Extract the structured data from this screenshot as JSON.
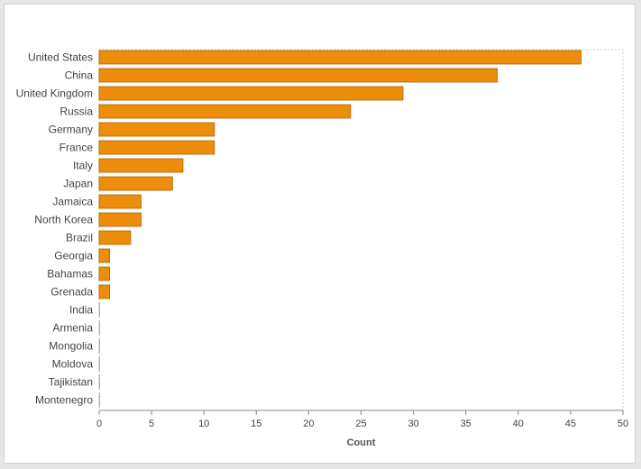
{
  "chart_data": {
    "type": "bar",
    "orientation": "horizontal",
    "categories": [
      "United States",
      "China",
      "United Kingdom",
      "Russia",
      "Germany",
      "France",
      "Italy",
      "Japan",
      "Jamaica",
      "North Korea",
      "Brazil",
      "Georgia",
      "Bahamas",
      "Grenada",
      "India",
      "Armenia",
      "Mongolia",
      "Moldova",
      "Tajikistan",
      "Montenegro"
    ],
    "values": [
      46,
      38,
      29,
      24,
      11,
      11,
      8,
      7,
      4,
      4,
      3,
      1,
      1,
      1,
      0,
      0,
      0,
      0,
      0,
      0
    ],
    "xlabel": "Count",
    "ylabel": "",
    "xlim": [
      0,
      50
    ],
    "xticks": [
      "0",
      "5",
      "10",
      "15",
      "20",
      "25",
      "30",
      "35",
      "40",
      "45",
      "50"
    ],
    "grid": false,
    "colors": {
      "bar_fill": "#ec8d0b",
      "bar_stroke": "#b06200"
    }
  }
}
